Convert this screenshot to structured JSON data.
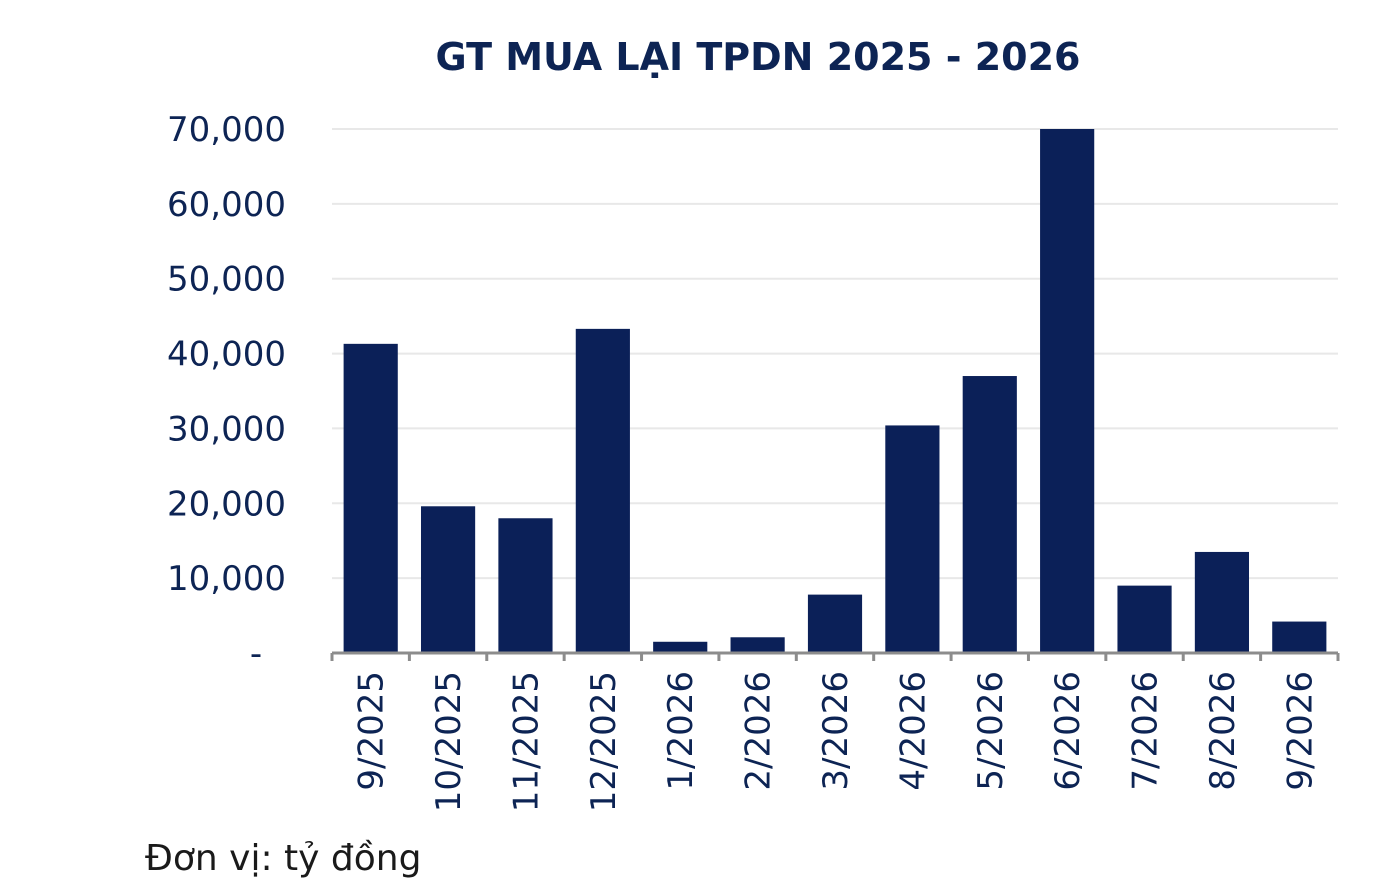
{
  "chart_data": {
    "type": "bar",
    "title": "GT MUA LẠI TPDN 2025 - 2026",
    "categories": [
      "9/2025",
      "10/2025",
      "11/2025",
      "12/2025",
      "1/2026",
      "2/2026",
      "3/2026",
      "4/2026",
      "5/2026",
      "6/2026",
      "7/2026",
      "8/2026",
      "9/2026"
    ],
    "values": [
      41300,
      19600,
      18000,
      43300,
      1500,
      2100,
      7800,
      30400,
      37000,
      70000,
      9000,
      13500,
      4200
    ],
    "ylim": [
      0,
      70000
    ],
    "yticks": [
      0,
      10000,
      20000,
      30000,
      40000,
      50000,
      60000,
      70000
    ],
    "ytick_labels": [
      "-",
      "10,000",
      "20,000",
      "30,000",
      "40,000",
      "50,000",
      "60,000",
      "70,000"
    ],
    "grid": true,
    "legend": "none",
    "bar_color": "#0b2058",
    "grid_color": "#e8e8e8",
    "axis_color": "#8c8c8c",
    "text_color": "#0d2454"
  },
  "footnote": "Đơn vị: tỷ đồng"
}
